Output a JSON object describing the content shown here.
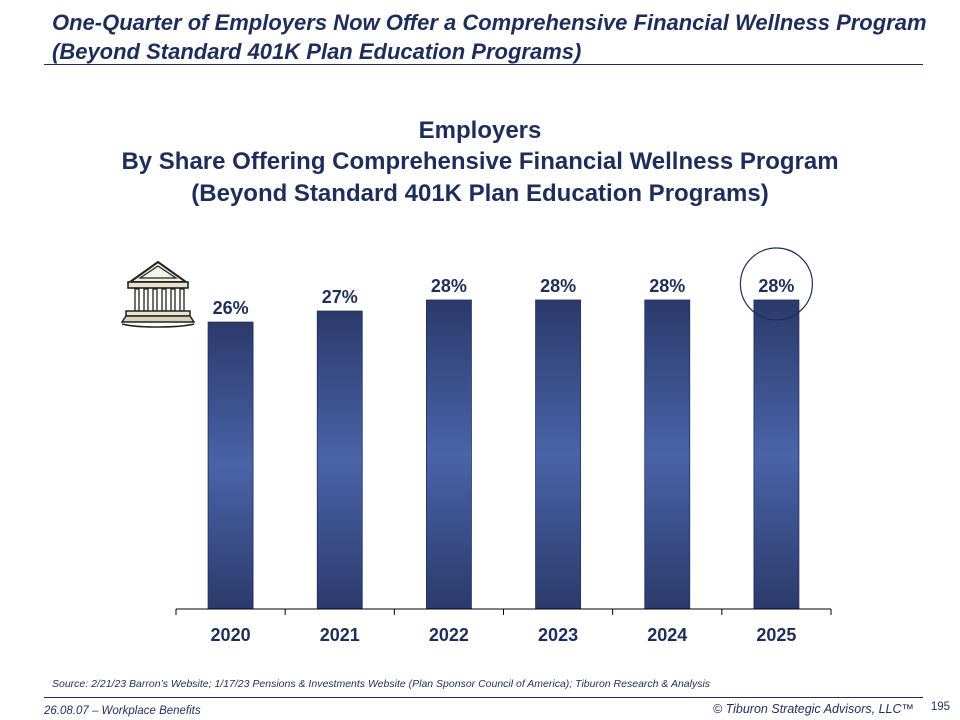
{
  "slide": {
    "title": "One-Quarter of Employers Now Offer a Comprehensive Financial Wellness Program (Beyond Standard 401K Plan Education Programs)",
    "source": "Source:  2/21/23 Barron’s Website; 1/17/23 Pensions & Investments Website (Plan Sponsor Council of America); Tiburon Research & Analysis",
    "footer_left": "26.08.07 – Workplace Benefits",
    "footer_right": "© Tiburon Strategic Advisors, LLC™",
    "page_number": "195",
    "icon": "bank-temple-icon",
    "colors": {
      "title": "#1f2d5a",
      "bar_dark": "#2b3a6b",
      "bar_light": "#4a64a8",
      "highlight_circle": "#1f2d5a"
    }
  },
  "chart_data": {
    "type": "bar",
    "title_lines": [
      "Employers",
      "By Share Offering Comprehensive Financial Wellness Program",
      "(Beyond Standard 401K Plan Education Programs)"
    ],
    "categories": [
      "2020",
      "2021",
      "2022",
      "2023",
      "2024",
      "2025"
    ],
    "values": [
      26,
      27,
      28,
      28,
      28,
      28
    ],
    "value_labels": [
      "26%",
      "27%",
      "28%",
      "28%",
      "28%",
      "28%"
    ],
    "unit": "%",
    "ylim": [
      0,
      28
    ],
    "y_axis_visible": false,
    "grid": false,
    "highlighted_category": "2025",
    "xlabel": "",
    "ylabel": ""
  }
}
